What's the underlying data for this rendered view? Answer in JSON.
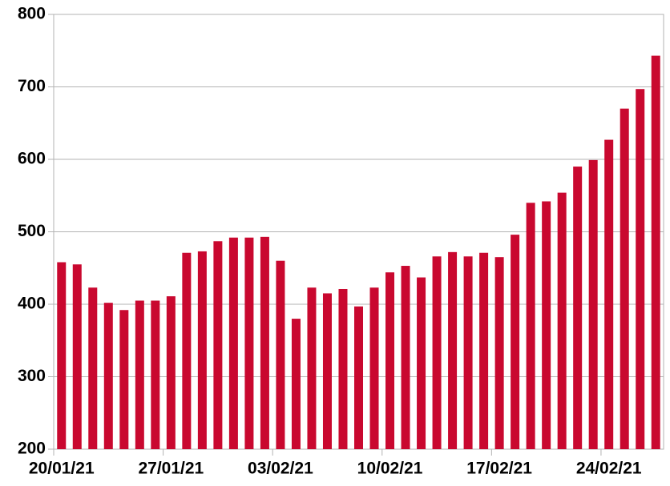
{
  "chart_data": {
    "type": "bar",
    "categories": [
      "20/01/21",
      null,
      null,
      null,
      null,
      null,
      null,
      "27/01/21",
      null,
      null,
      null,
      null,
      null,
      null,
      "03/02/21",
      null,
      null,
      null,
      null,
      null,
      null,
      "10/02/21",
      null,
      null,
      null,
      null,
      null,
      null,
      "17/02/21",
      null,
      null,
      null,
      null,
      null,
      null,
      "24/02/21",
      null,
      null,
      null
    ],
    "values": [
      458,
      455,
      423,
      402,
      392,
      405,
      405,
      411,
      471,
      473,
      487,
      492,
      492,
      493,
      460,
      380,
      423,
      415,
      421,
      397,
      423,
      444,
      453,
      437,
      466,
      472,
      466,
      471,
      465,
      496,
      540,
      542,
      554,
      590,
      599,
      627,
      670,
      697,
      743
    ],
    "color": "#c9082f",
    "ylim": [
      200,
      800
    ],
    "yticks": [
      200,
      300,
      400,
      500,
      600,
      700,
      800
    ],
    "grid": true
  }
}
